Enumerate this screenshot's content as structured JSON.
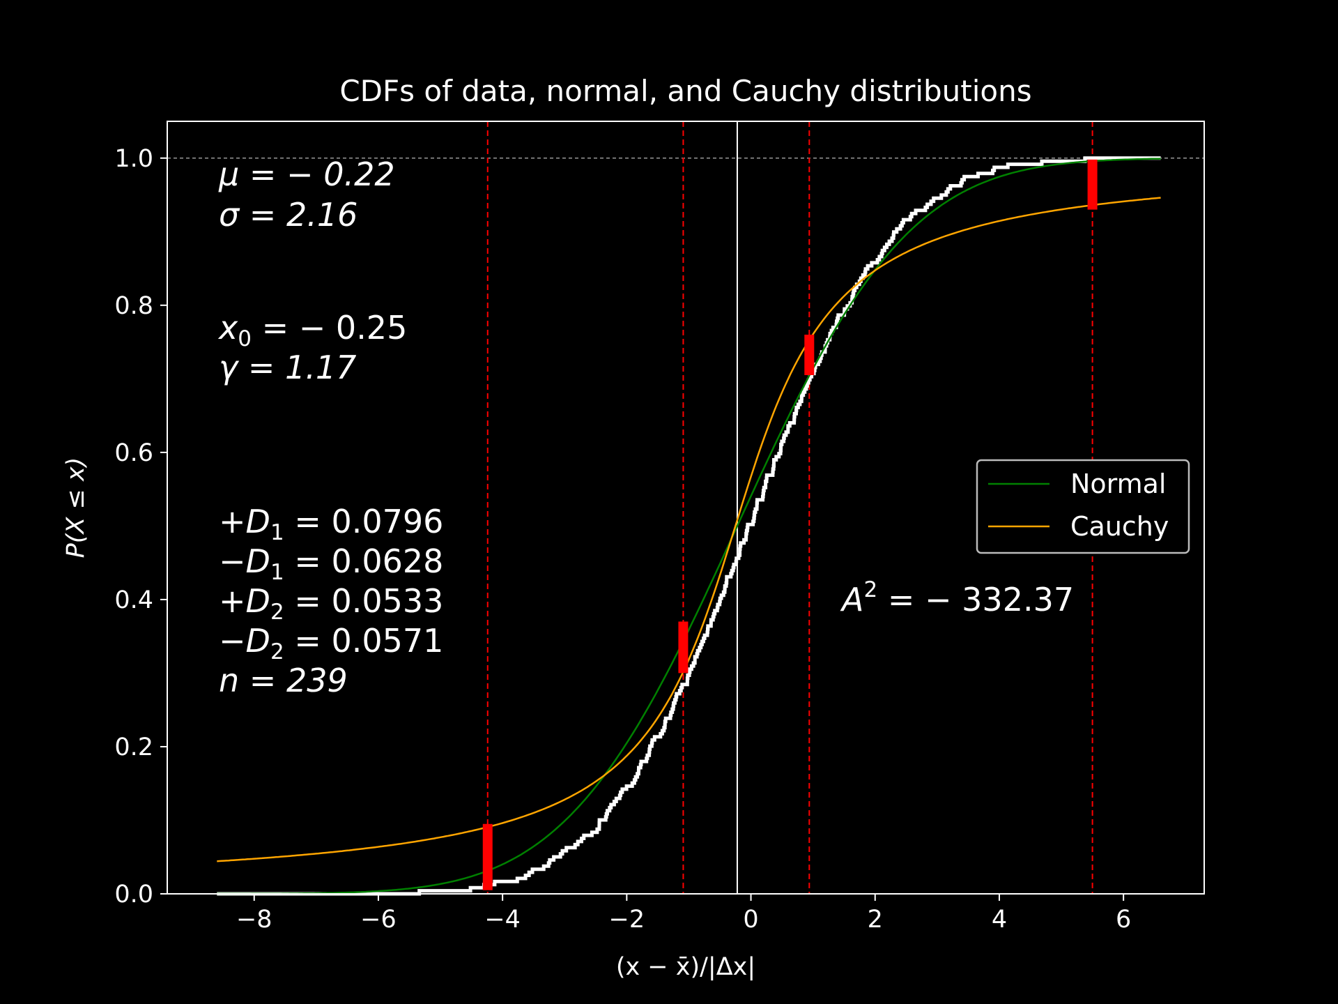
{
  "chart_data": {
    "type": "line",
    "title": "CDFs of data, normal, and Cauchy distributions",
    "xlabel": "(x − x̄)/|Δx|",
    "ylabel": "P(X ≤ x)",
    "xlim": [
      -9.4,
      7.3
    ],
    "ylim": [
      0.0,
      1.05
    ],
    "xticks": [
      -8,
      -6,
      -4,
      -2,
      0,
      2,
      4,
      6
    ],
    "xtick_labels": [
      "−8",
      "−6",
      "−4",
      "−2",
      "0",
      "2",
      "4",
      "6"
    ],
    "yticks": [
      0.0,
      0.2,
      0.4,
      0.6,
      0.8,
      1.0
    ],
    "ytick_labels": [
      "0.0",
      "0.2",
      "0.4",
      "0.6",
      "0.8",
      "1.0"
    ],
    "grid": false,
    "legend": {
      "placement": "center-right",
      "entries": [
        "Normal",
        "Cauchy"
      ]
    },
    "series": [
      {
        "name": "Normal",
        "color": "#008000",
        "kind": "normal_cdf",
        "mu": -0.22,
        "sigma": 2.16,
        "x_range": [
          -8.6,
          6.6
        ]
      },
      {
        "name": "Cauchy",
        "color": "#ffa500",
        "kind": "cauchy_cdf",
        "x0": -0.25,
        "gamma": 1.17,
        "x_range": [
          -8.6,
          6.6
        ]
      },
      {
        "color": "#ffffff",
        "kind": "empirical_cdf",
        "n": 239,
        "x_range": [
          -8.6,
          6.6
        ]
      }
    ],
    "reference_lines": {
      "horizontal_dashed_y": 1.0,
      "vertical_solid_x": -0.22,
      "vertical_dashed_red_x": [
        -4.24,
        -1.09,
        0.94,
        5.5
      ]
    },
    "error_bars": [
      {
        "x": -4.24,
        "y_low": 0.005,
        "y_high": 0.095
      },
      {
        "x": -1.09,
        "y_low": 0.3,
        "y_high": 0.37
      },
      {
        "x": 0.94,
        "y_low": 0.705,
        "y_high": 0.76
      },
      {
        "x": 5.5,
        "y_low": 0.93,
        "y_high": 0.998
      }
    ],
    "annotations": {
      "mu": "μ = − 0.22",
      "sigma": "σ = 2.16",
      "x0": "x",
      "x0_sub": "0",
      "x0_rest": " = − 0.25",
      "gamma": "γ = 1.17",
      "d1p": "+D",
      "d1p_sub": "1",
      "d1p_rest": " = 0.0796",
      "d1m": "−D",
      "d1m_sub": "1",
      "d1m_rest": " = 0.0628",
      "d2p": "+D",
      "d2p_sub": "2",
      "d2p_rest": " = 0.0533",
      "d2m": "−D",
      "d2m_sub": "2",
      "d2m_rest": " = 0.0571",
      "n": "n = 239",
      "a2": "A",
      "a2_sup": "2",
      "a2_rest": " = − 332.37"
    }
  }
}
